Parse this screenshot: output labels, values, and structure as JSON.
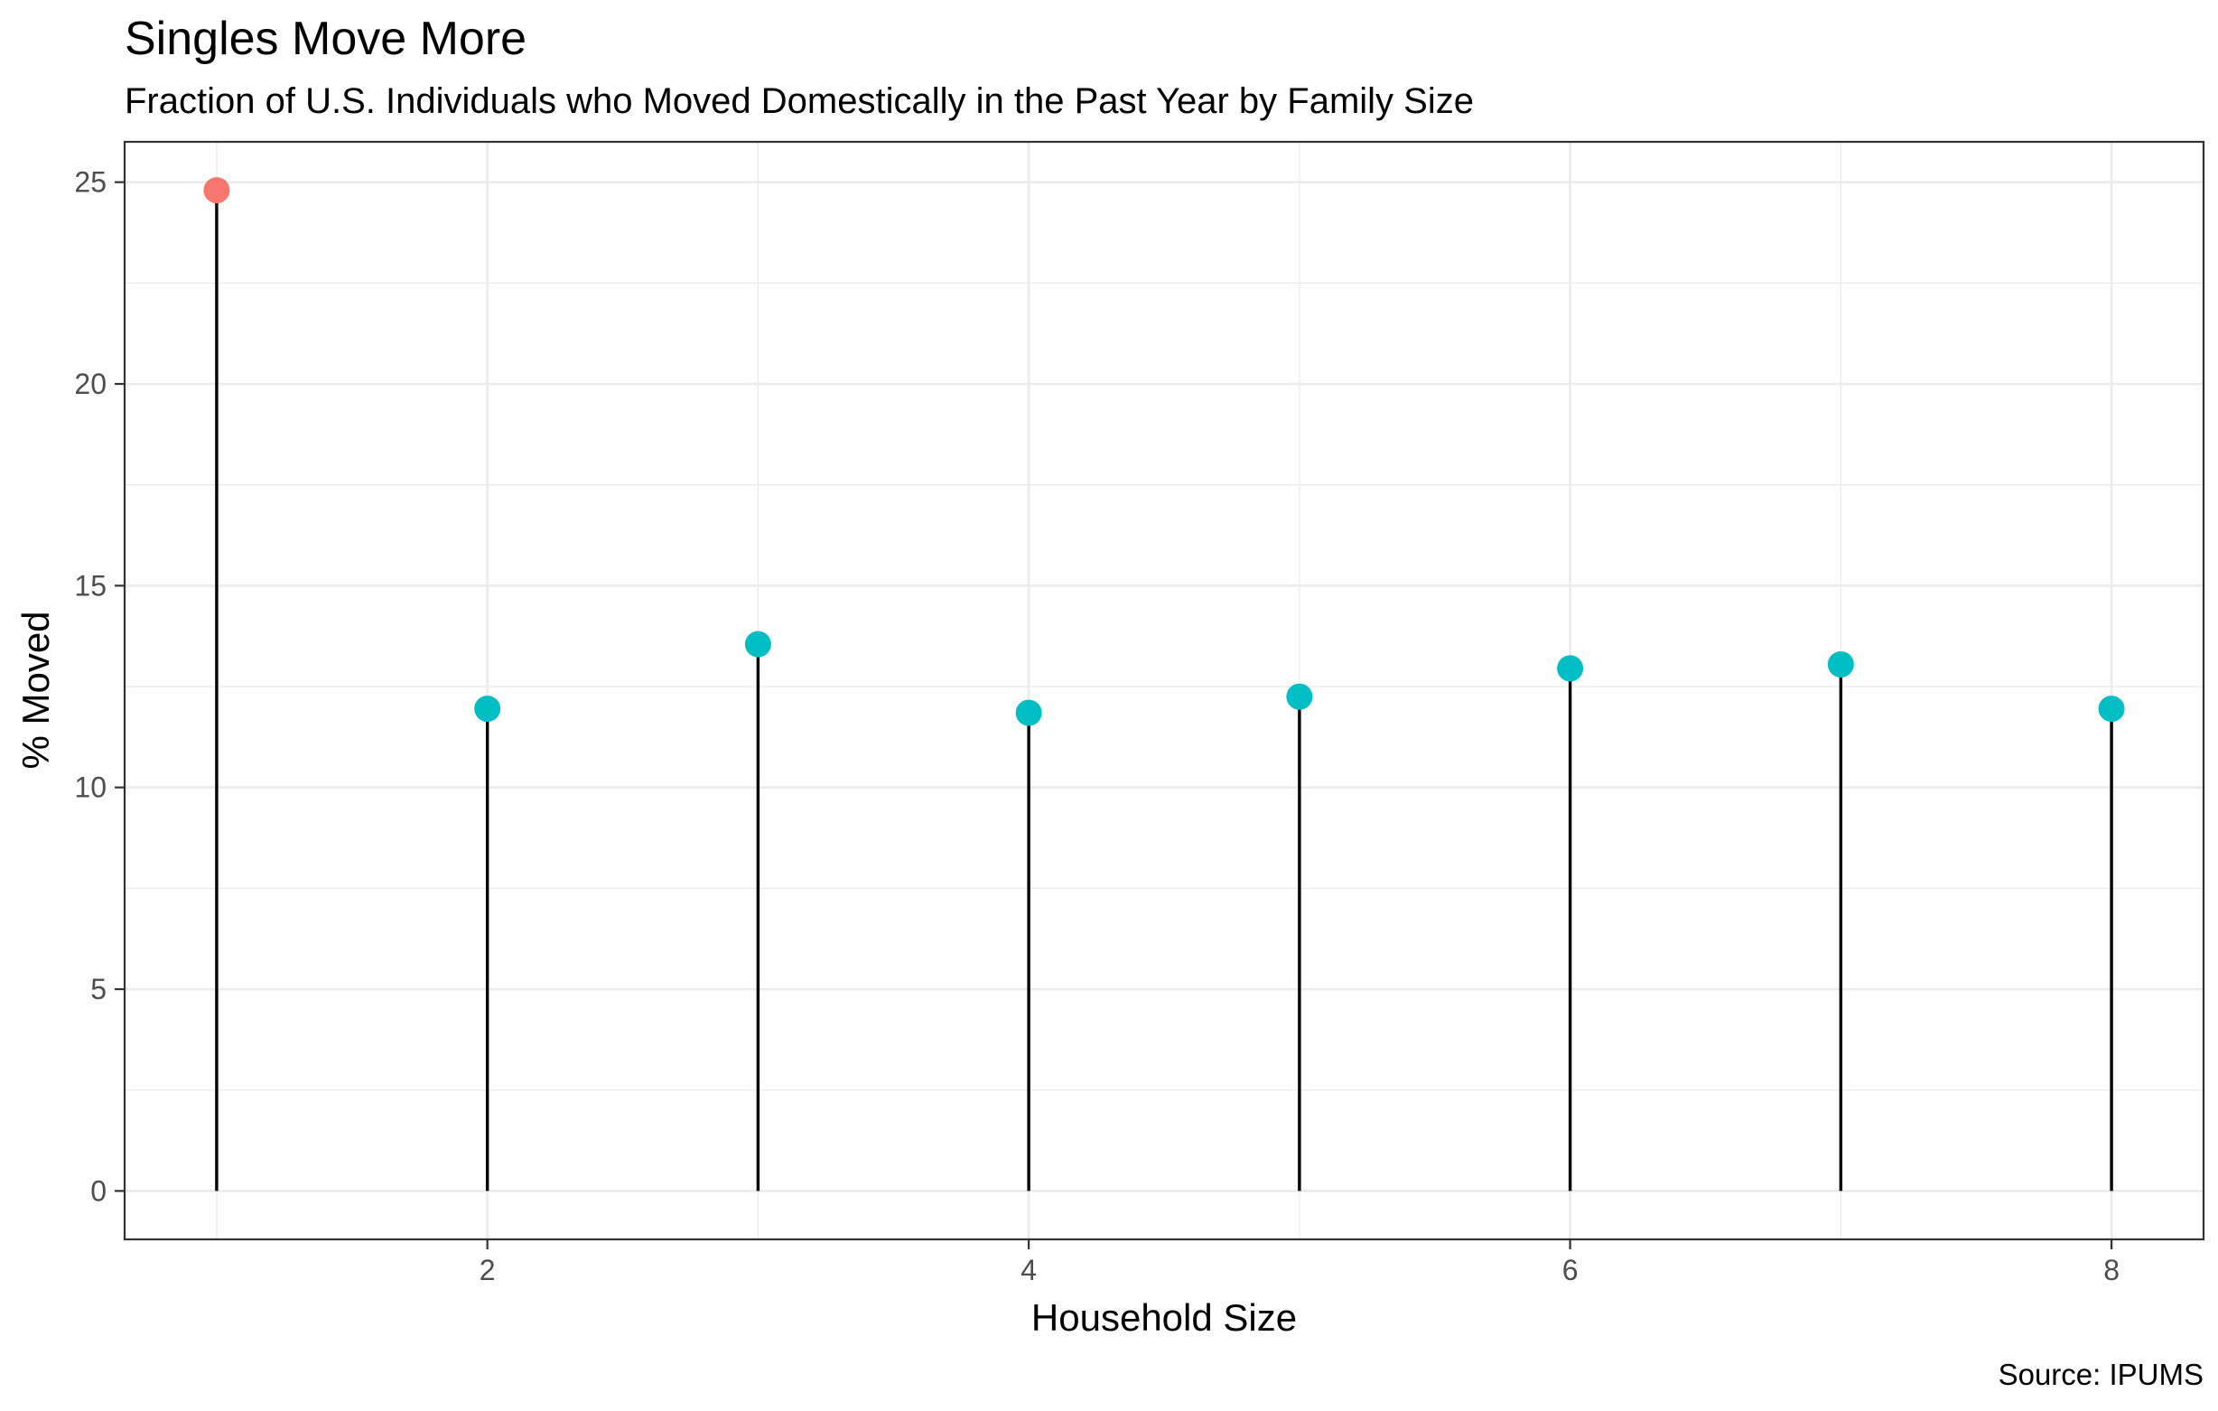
{
  "chart_data": {
    "type": "lollipop",
    "title": "Singles Move More",
    "subtitle": "Fraction of U.S. Individuals who Moved Domestically in the Past Year by Family Size",
    "xlabel": "Household Size",
    "ylabel": "% Moved",
    "caption": "Source: IPUMS",
    "x": [
      1,
      2,
      3,
      4,
      5,
      6,
      7,
      8
    ],
    "values": [
      24.8,
      11.95,
      13.55,
      11.85,
      12.25,
      12.95,
      13.05,
      11.95
    ],
    "point_colors": [
      "#F8766D",
      "#00BFC4",
      "#00BFC4",
      "#00BFC4",
      "#00BFC4",
      "#00BFC4",
      "#00BFC4",
      "#00BFC4"
    ],
    "stem_color": "#000000",
    "xlim": [
      0.66,
      8.34
    ],
    "ylim": [
      -1.2,
      26
    ],
    "x_ticks": [
      2,
      4,
      6,
      8
    ],
    "x_tick_labels": [
      "2",
      "4",
      "6",
      "8"
    ],
    "y_ticks": [
      0,
      5,
      10,
      15,
      20,
      25
    ],
    "y_tick_labels": [
      "0",
      "5",
      "10",
      "15",
      "20",
      "25"
    ],
    "grid": true,
    "legend": "none"
  }
}
